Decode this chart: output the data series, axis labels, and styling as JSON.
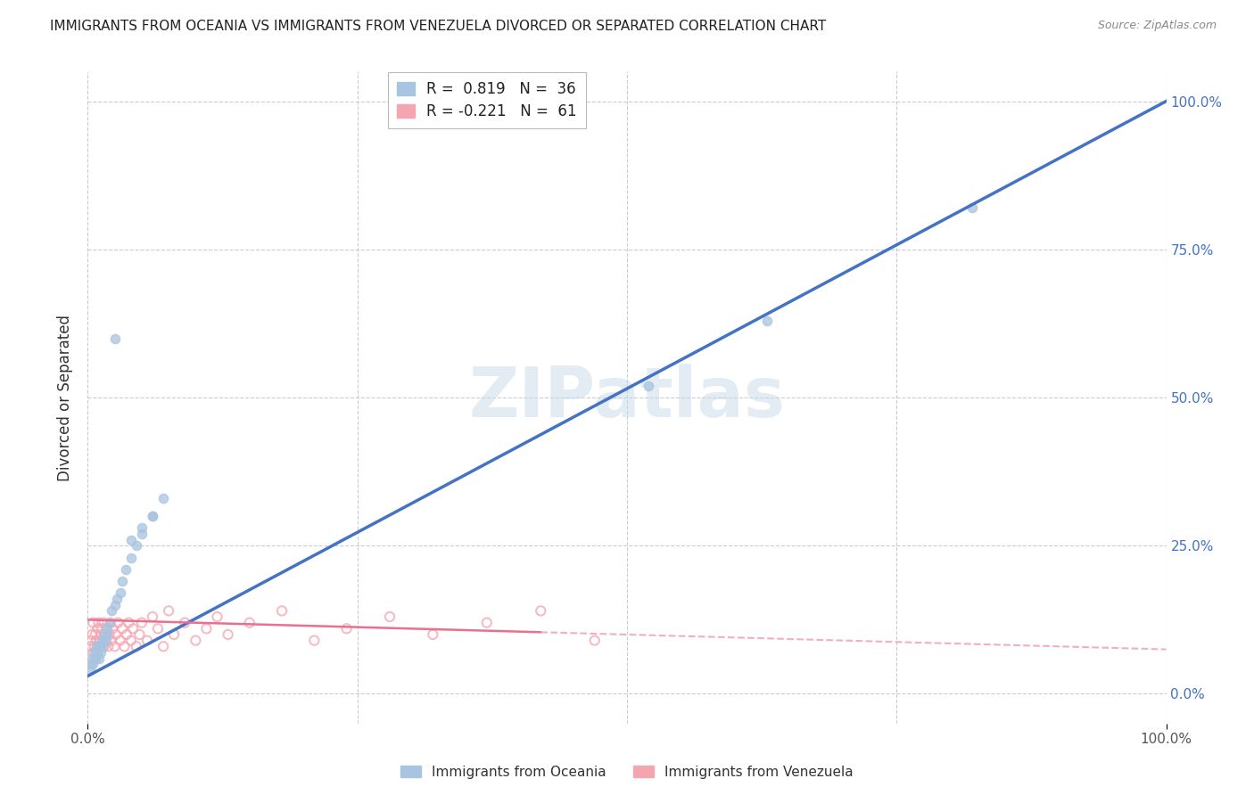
{
  "title": "IMMIGRANTS FROM OCEANIA VS IMMIGRANTS FROM VENEZUELA DIVORCED OR SEPARATED CORRELATION CHART",
  "source": "Source: ZipAtlas.com",
  "ylabel": "Divorced or Separated",
  "xlim": [
    0.0,
    1.0
  ],
  "ylim": [
    -0.05,
    1.05
  ],
  "oceania_R": 0.819,
  "oceania_N": 36,
  "venezuela_R": -0.221,
  "venezuela_N": 61,
  "oceania_color": "#a8c4e0",
  "oceania_edge_color": "#4472c4",
  "venezuela_color": "#f4a6b0",
  "venezuela_edge_color": "#e87090",
  "oceania_line_color": "#4472c4",
  "venezuela_line_color": "#e87090",
  "venezuela_dash_color": "#f0b0c0",
  "scatter_alpha": 0.75,
  "scatter_size": 55,
  "watermark": "ZIPatlas",
  "background_color": "#ffffff",
  "grid_color": "#cccccc",
  "ytick_right_labels": [
    "0.0%",
    "25.0%",
    "50.0%",
    "75.0%",
    "100.0%"
  ],
  "oceania_x": [
    0.002,
    0.003,
    0.004,
    0.005,
    0.006,
    0.007,
    0.008,
    0.009,
    0.01,
    0.011,
    0.012,
    0.013,
    0.014,
    0.015,
    0.016,
    0.017,
    0.018,
    0.02,
    0.022,
    0.025,
    0.027,
    0.03,
    0.032,
    0.035,
    0.04,
    0.045,
    0.05,
    0.06,
    0.07,
    0.04,
    0.05,
    0.06,
    0.63,
    0.82,
    0.025,
    0.52
  ],
  "oceania_y": [
    0.04,
    0.05,
    0.06,
    0.05,
    0.07,
    0.06,
    0.08,
    0.07,
    0.06,
    0.08,
    0.07,
    0.09,
    0.08,
    0.1,
    0.09,
    0.11,
    0.1,
    0.12,
    0.14,
    0.15,
    0.16,
    0.17,
    0.19,
    0.21,
    0.23,
    0.25,
    0.27,
    0.3,
    0.33,
    0.26,
    0.28,
    0.3,
    0.63,
    0.82,
    0.6,
    0.52
  ],
  "venezuela_x": [
    0.002,
    0.003,
    0.004,
    0.005,
    0.005,
    0.006,
    0.007,
    0.007,
    0.008,
    0.009,
    0.009,
    0.01,
    0.01,
    0.011,
    0.012,
    0.012,
    0.013,
    0.014,
    0.015,
    0.015,
    0.016,
    0.017,
    0.018,
    0.019,
    0.02,
    0.021,
    0.022,
    0.023,
    0.025,
    0.026,
    0.028,
    0.03,
    0.032,
    0.034,
    0.036,
    0.038,
    0.04,
    0.042,
    0.045,
    0.048,
    0.05,
    0.055,
    0.06,
    0.065,
    0.07,
    0.075,
    0.08,
    0.09,
    0.1,
    0.11,
    0.12,
    0.13,
    0.15,
    0.18,
    0.21,
    0.24,
    0.28,
    0.32,
    0.37,
    0.42,
    0.47
  ],
  "venezuela_y": [
    0.08,
    0.09,
    0.1,
    0.07,
    0.12,
    0.08,
    0.1,
    0.06,
    0.09,
    0.11,
    0.07,
    0.08,
    0.12,
    0.09,
    0.1,
    0.08,
    0.11,
    0.09,
    0.08,
    0.12,
    0.1,
    0.09,
    0.11,
    0.08,
    0.1,
    0.12,
    0.09,
    0.11,
    0.08,
    0.1,
    0.12,
    0.09,
    0.11,
    0.08,
    0.1,
    0.12,
    0.09,
    0.11,
    0.08,
    0.1,
    0.12,
    0.09,
    0.13,
    0.11,
    0.08,
    0.14,
    0.1,
    0.12,
    0.09,
    0.11,
    0.13,
    0.1,
    0.12,
    0.14,
    0.09,
    0.11,
    0.13,
    0.1,
    0.12,
    0.14,
    0.09
  ],
  "oceania_line_x0": 0.0,
  "oceania_line_y0": 0.03,
  "oceania_line_x1": 1.0,
  "oceania_line_y1": 1.0,
  "venezuela_line_solid_x1": 0.42,
  "venezuela_line_y0": 0.125,
  "venezuela_line_y1": 0.075
}
